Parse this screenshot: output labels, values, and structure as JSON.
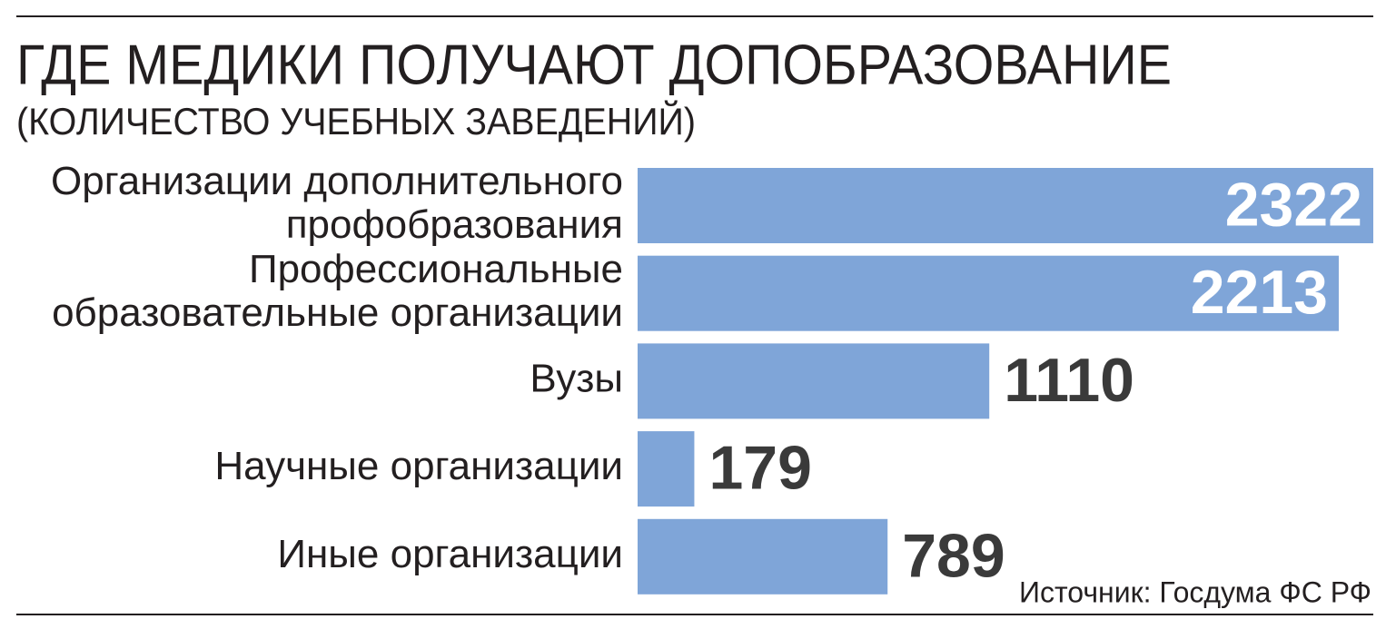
{
  "chart_data": {
    "type": "bar",
    "orientation": "horizontal",
    "title": "ГДЕ МЕДИКИ ПОЛУЧАЮТ ДОПОБРАЗОВАНИЕ",
    "subtitle": "(КОЛИЧЕСТВО УЧЕБНЫХ ЗАВЕДЕНИЙ)",
    "categories": [
      [
        "Организации дополнительного",
        "профобразования"
      ],
      [
        "Профессиональные",
        "образовательные организации"
      ],
      [
        "Вузы"
      ],
      [
        "Научные организации"
      ],
      [
        "Иные организации"
      ]
    ],
    "values": [
      2322,
      2213,
      1110,
      179,
      789
    ],
    "color": "#7fa5d8",
    "source": "Источник: Госдума ФС РФ"
  }
}
